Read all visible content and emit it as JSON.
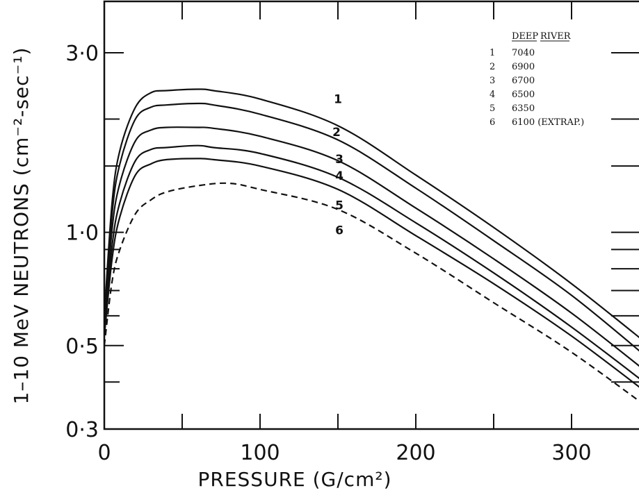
{
  "chart_data": {
    "type": "line",
    "title": "",
    "xlabel": "PRESSURE (G/cm²)",
    "ylabel": "1–10 MeV NEUTRONS (cm⁻²-sec⁻¹)",
    "yscale": "log",
    "xlim": [
      0,
      355
    ],
    "ylim": [
      0.3,
      3.7
    ],
    "x_tick_labels": [
      {
        "value": 0,
        "label": "0"
      },
      {
        "value": 100,
        "label": "100"
      },
      {
        "value": 200,
        "label": "200"
      },
      {
        "value": 300,
        "label": "300"
      }
    ],
    "y_tick_labels": [
      {
        "value": 0.3,
        "label": "0·3"
      },
      {
        "value": 0.5,
        "label": "0·5"
      },
      {
        "value": 1.0,
        "label": "1·0"
      },
      {
        "value": 3.0,
        "label": "3·0"
      }
    ],
    "legend": {
      "position": "top-right",
      "header_left": "DEEP",
      "header_right": "RIVER"
    },
    "series": [
      {
        "name": "7040",
        "id": "1",
        "style": "solid",
        "x": [
          0,
          5,
          10,
          20,
          30,
          40,
          60,
          70,
          100,
          150,
          200,
          250,
          300,
          350
        ],
        "y": [
          0.6,
          1.2,
          1.65,
          2.15,
          2.35,
          2.38,
          2.4,
          2.38,
          2.26,
          1.92,
          1.42,
          1.03,
          0.73,
          0.5
        ]
      },
      {
        "name": "6900",
        "id": "2",
        "style": "solid",
        "x": [
          0,
          5,
          10,
          20,
          30,
          40,
          60,
          70,
          100,
          150,
          200,
          250,
          300,
          350
        ],
        "y": [
          0.58,
          1.12,
          1.52,
          2.0,
          2.15,
          2.18,
          2.2,
          2.18,
          2.06,
          1.76,
          1.31,
          0.95,
          0.68,
          0.46
        ]
      },
      {
        "name": "6700",
        "id": "3",
        "style": "solid",
        "x": [
          0,
          5,
          10,
          20,
          30,
          40,
          60,
          70,
          100,
          150,
          200,
          250,
          300,
          350
        ],
        "y": [
          0.56,
          1.02,
          1.35,
          1.75,
          1.87,
          1.9,
          1.9,
          1.89,
          1.8,
          1.55,
          1.16,
          0.85,
          0.61,
          0.42
        ]
      },
      {
        "name": "6500",
        "id": "4",
        "style": "solid",
        "x": [
          0,
          5,
          10,
          20,
          30,
          40,
          60,
          70,
          100,
          150,
          200,
          250,
          300,
          350
        ],
        "y": [
          0.54,
          0.92,
          1.2,
          1.55,
          1.66,
          1.68,
          1.7,
          1.68,
          1.62,
          1.4,
          1.06,
          0.78,
          0.56,
          0.39
        ]
      },
      {
        "name": "6350",
        "id": "5",
        "style": "solid",
        "x": [
          0,
          5,
          10,
          20,
          30,
          40,
          60,
          70,
          100,
          150,
          200,
          250,
          300,
          350
        ],
        "y": [
          0.53,
          0.85,
          1.1,
          1.42,
          1.52,
          1.56,
          1.57,
          1.56,
          1.5,
          1.3,
          0.98,
          0.73,
          0.53,
          0.37
        ]
      },
      {
        "name": "6100 (EXTRAP.)",
        "id": "6",
        "style": "dashed",
        "x": [
          0,
          5,
          10,
          20,
          30,
          40,
          60,
          80,
          100,
          150,
          200,
          250,
          300,
          350
        ],
        "y": [
          0.5,
          0.74,
          0.9,
          1.12,
          1.22,
          1.28,
          1.33,
          1.35,
          1.3,
          1.15,
          0.88,
          0.65,
          0.48,
          0.34
        ]
      }
    ]
  }
}
